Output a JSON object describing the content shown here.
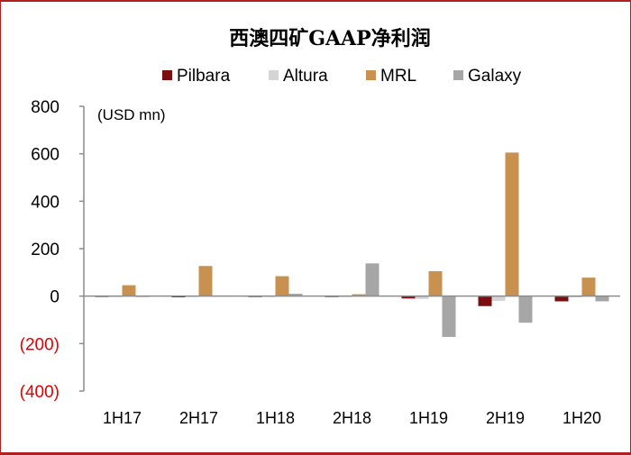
{
  "chart_data": {
    "type": "bar",
    "title": "西澳四矿GAAP净利润",
    "unit_label": "(USD mn)",
    "categories": [
      "1H17",
      "2H17",
      "1H18",
      "2H18",
      "1H19",
      "2H19",
      "1H20"
    ],
    "series": [
      {
        "name": "Pilbara",
        "color": "#7a0f12",
        "values": [
          -2,
          -5,
          -4,
          -4,
          -10,
          -42,
          -22
        ]
      },
      {
        "name": "Altura",
        "color": "#d4d4d4",
        "values": [
          -3,
          -3,
          -3,
          -3,
          -12,
          -20,
          -5
        ]
      },
      {
        "name": "MRL",
        "color": "#c8914f",
        "values": [
          46,
          127,
          84,
          8,
          105,
          605,
          78
        ]
      },
      {
        "name": "Galaxy",
        "color": "#a6a6a6",
        "values": [
          -2,
          2,
          10,
          138,
          -172,
          -112,
          -22
        ]
      }
    ],
    "ylim": [
      -400,
      800
    ],
    "yticks": [
      {
        "value": 800,
        "label": "800",
        "color": "#000000"
      },
      {
        "value": 600,
        "label": "600",
        "color": "#000000"
      },
      {
        "value": 400,
        "label": "400",
        "color": "#000000"
      },
      {
        "value": 200,
        "label": "200",
        "color": "#000000"
      },
      {
        "value": 0,
        "label": "0",
        "color": "#000000"
      },
      {
        "value": -200,
        "label": "(200)",
        "color": "#e00000"
      },
      {
        "value": -400,
        "label": "(400)",
        "color": "#e00000"
      }
    ],
    "legend_position": "top-center",
    "grid": false,
    "accent_color": "#b02020"
  }
}
